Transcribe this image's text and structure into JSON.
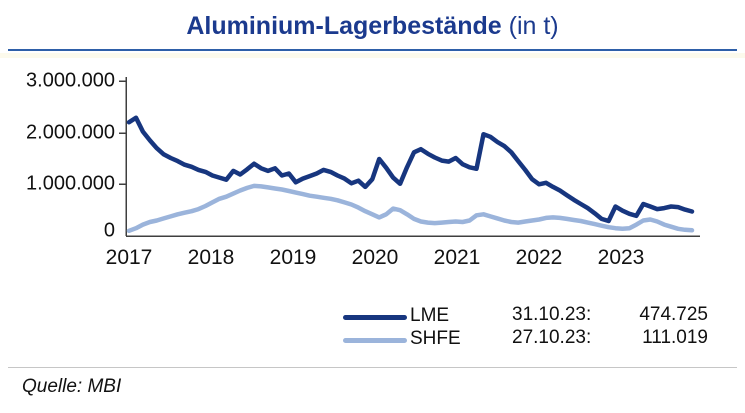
{
  "title": {
    "main": "Aluminium-Lagerbestände",
    "suffix": " (in t)"
  },
  "source": "Quelle: MBI",
  "colors": {
    "accent": "#1b3a8e",
    "lme_line": "#17367f",
    "shfe_line": "#9bb4db",
    "axis": "#3f3f3f",
    "title_underline": "#2e5fa8",
    "footer_divider": "#c6c6c6",
    "text": "#111111"
  },
  "legend": {
    "items": [
      {
        "label": "LME"
      },
      {
        "label": "SHFE"
      }
    ],
    "annotations": [
      {
        "date": "31.10.23:",
        "value": "474.725"
      },
      {
        "date": "27.10.23:",
        "value": "111.019"
      }
    ]
  },
  "chart_data": {
    "type": "line",
    "title": "Aluminium-Lagerbestände (in t)",
    "xlabel": "",
    "ylabel": "",
    "x_unit": "monthly values, Jan 2017 - Oct 2023",
    "x_tick_labels": [
      "2017",
      "2018",
      "2019",
      "2020",
      "2021",
      "2022",
      "2023"
    ],
    "y_tick_labels": [
      "3.000.000",
      "2.000.000",
      "1.000.000",
      "0"
    ],
    "ylim": [
      0,
      3000000
    ],
    "grid": false,
    "legend_position": "bottom-center",
    "series": [
      {
        "name": "LME",
        "color": "#17367f",
        "last_point": {
          "date": "31.10.23",
          "value": 474725
        },
        "values": [
          2200000,
          2290000,
          2020000,
          1850000,
          1700000,
          1580000,
          1510000,
          1450000,
          1380000,
          1340000,
          1280000,
          1240000,
          1170000,
          1130000,
          1090000,
          1260000,
          1190000,
          1290000,
          1400000,
          1310000,
          1260000,
          1310000,
          1170000,
          1210000,
          1040000,
          1110000,
          1160000,
          1210000,
          1280000,
          1240000,
          1170000,
          1110000,
          1020000,
          1070000,
          950000,
          1100000,
          1490000,
          1320000,
          1130000,
          1010000,
          1330000,
          1620000,
          1680000,
          1590000,
          1520000,
          1460000,
          1440000,
          1510000,
          1390000,
          1330000,
          1300000,
          1970000,
          1920000,
          1820000,
          1740000,
          1620000,
          1450000,
          1280000,
          1100000,
          1000000,
          1030000,
          950000,
          880000,
          790000,
          700000,
          620000,
          540000,
          440000,
          330000,
          290000,
          570000,
          490000,
          430000,
          390000,
          620000,
          570000,
          520000,
          540000,
          570000,
          560000,
          510000,
          474725
        ]
      },
      {
        "name": "SHFE",
        "color": "#9bb4db",
        "last_point": {
          "date": "27.10.23",
          "value": 111019
        },
        "values": [
          100000,
          150000,
          220000,
          270000,
          300000,
          340000,
          380000,
          420000,
          450000,
          480000,
          520000,
          580000,
          650000,
          720000,
          760000,
          820000,
          880000,
          930000,
          970000,
          960000,
          940000,
          920000,
          900000,
          870000,
          840000,
          810000,
          780000,
          760000,
          740000,
          720000,
          690000,
          650000,
          610000,
          550000,
          480000,
          420000,
          360000,
          420000,
          530000,
          500000,
          420000,
          330000,
          280000,
          260000,
          250000,
          260000,
          270000,
          280000,
          270000,
          300000,
          400000,
          420000,
          380000,
          340000,
          300000,
          270000,
          260000,
          280000,
          300000,
          320000,
          350000,
          360000,
          350000,
          330000,
          310000,
          290000,
          260000,
          230000,
          200000,
          170000,
          150000,
          140000,
          150000,
          220000,
          300000,
          320000,
          280000,
          220000,
          180000,
          140000,
          120000,
          111019
        ]
      }
    ]
  }
}
